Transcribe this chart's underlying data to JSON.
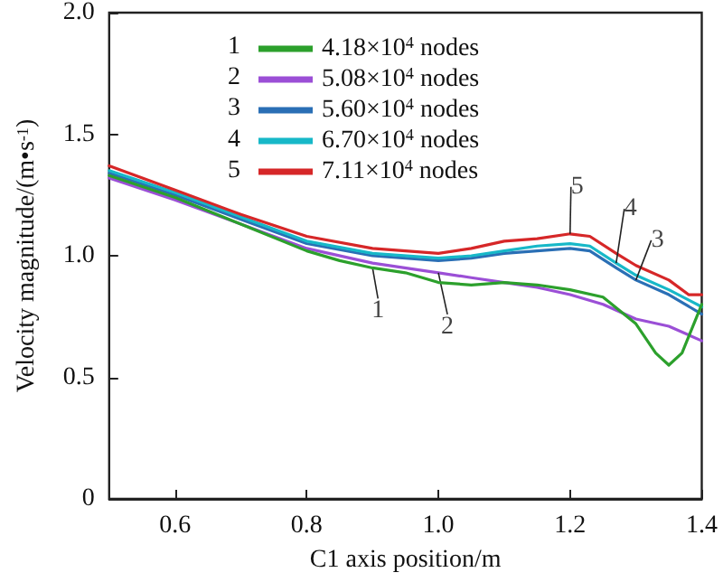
{
  "chart_data": {
    "type": "line",
    "xlabel": "C1 axis position/m",
    "ylabel": "Velocity magnitude/(m•s$^{-1}$)",
    "xlim": [
      0.5,
      1.4
    ],
    "xticks": [
      0.6,
      0.8,
      {
        "value": 1,
        "label": "1.0"
      },
      1.2,
      1.4
    ],
    "ylim": [
      0,
      2.0
    ],
    "yticks": [
      {
        "value": 0,
        "label": "0"
      },
      0.5,
      {
        "value": 1,
        "label": "1.0"
      },
      1.5,
      {
        "value": 2,
        "label": "2.0"
      }
    ],
    "grid": false,
    "legend": "top",
    "marker": "none",
    "line_style": "solid",
    "series": [
      {
        "name": "4.18×10$^{4}$ nodes",
        "color": "#2ca02c",
        "x": [
          0.5,
          0.6,
          0.7,
          0.8,
          0.85,
          0.9,
          0.95,
          1.0,
          1.05,
          1.1,
          1.15,
          1.2,
          1.25,
          1.3,
          1.33,
          1.35,
          1.37,
          1.4
        ],
        "values": [
          1.33,
          1.24,
          1.13,
          1.02,
          0.98,
          0.95,
          0.93,
          0.89,
          0.88,
          0.89,
          0.88,
          0.86,
          0.83,
          0.72,
          0.6,
          0.55,
          0.6,
          0.8
        ]
      },
      {
        "name": "5.08×10$^{4}$ nodes",
        "color": "#9b4fd6",
        "x": [
          0.5,
          0.6,
          0.7,
          0.8,
          0.9,
          1.0,
          1.05,
          1.1,
          1.15,
          1.2,
          1.25,
          1.3,
          1.35,
          1.4
        ],
        "values": [
          1.32,
          1.23,
          1.13,
          1.03,
          0.97,
          0.93,
          0.91,
          0.89,
          0.87,
          0.84,
          0.8,
          0.74,
          0.71,
          0.65
        ]
      },
      {
        "name": "5.60×10$^{4}$ nodes",
        "color": "#2a6fb5",
        "x": [
          0.5,
          0.6,
          0.7,
          0.8,
          0.9,
          1.0,
          1.05,
          1.1,
          1.15,
          1.2,
          1.23,
          1.27,
          1.3,
          1.35,
          1.4
        ],
        "values": [
          1.34,
          1.25,
          1.15,
          1.05,
          1.0,
          0.98,
          0.99,
          1.01,
          1.02,
          1.03,
          1.02,
          0.95,
          0.9,
          0.84,
          0.76
        ]
      },
      {
        "name": "6.70×10$^{4}$ nodes",
        "color": "#17b8c8",
        "x": [
          0.5,
          0.6,
          0.7,
          0.8,
          0.9,
          1.0,
          1.05,
          1.1,
          1.15,
          1.2,
          1.23,
          1.27,
          1.3,
          1.35,
          1.4
        ],
        "values": [
          1.35,
          1.26,
          1.16,
          1.06,
          1.01,
          0.99,
          1.0,
          1.02,
          1.04,
          1.05,
          1.04,
          0.97,
          0.92,
          0.86,
          0.79
        ]
      },
      {
        "name": "7.11×10$^{4}$ nodes",
        "color": "#d62728",
        "x": [
          0.5,
          0.6,
          0.7,
          0.8,
          0.9,
          1.0,
          1.05,
          1.1,
          1.15,
          1.2,
          1.23,
          1.27,
          1.3,
          1.35,
          1.38,
          1.4
        ],
        "values": [
          1.37,
          1.27,
          1.17,
          1.08,
          1.03,
          1.01,
          1.03,
          1.06,
          1.07,
          1.09,
          1.08,
          1.01,
          0.96,
          0.9,
          0.84,
          0.84
        ]
      }
    ],
    "annotations": [
      {
        "text": "1",
        "x": 0.9,
        "y": 0.95
      },
      {
        "text": "2",
        "x": 1.0,
        "y": 0.93
      },
      {
        "text": "3",
        "x": 1.3,
        "y": 0.9
      },
      {
        "text": "4",
        "x": 1.27,
        "y": 0.97
      },
      {
        "text": "5",
        "x": 1.2,
        "y": 1.09
      }
    ]
  }
}
